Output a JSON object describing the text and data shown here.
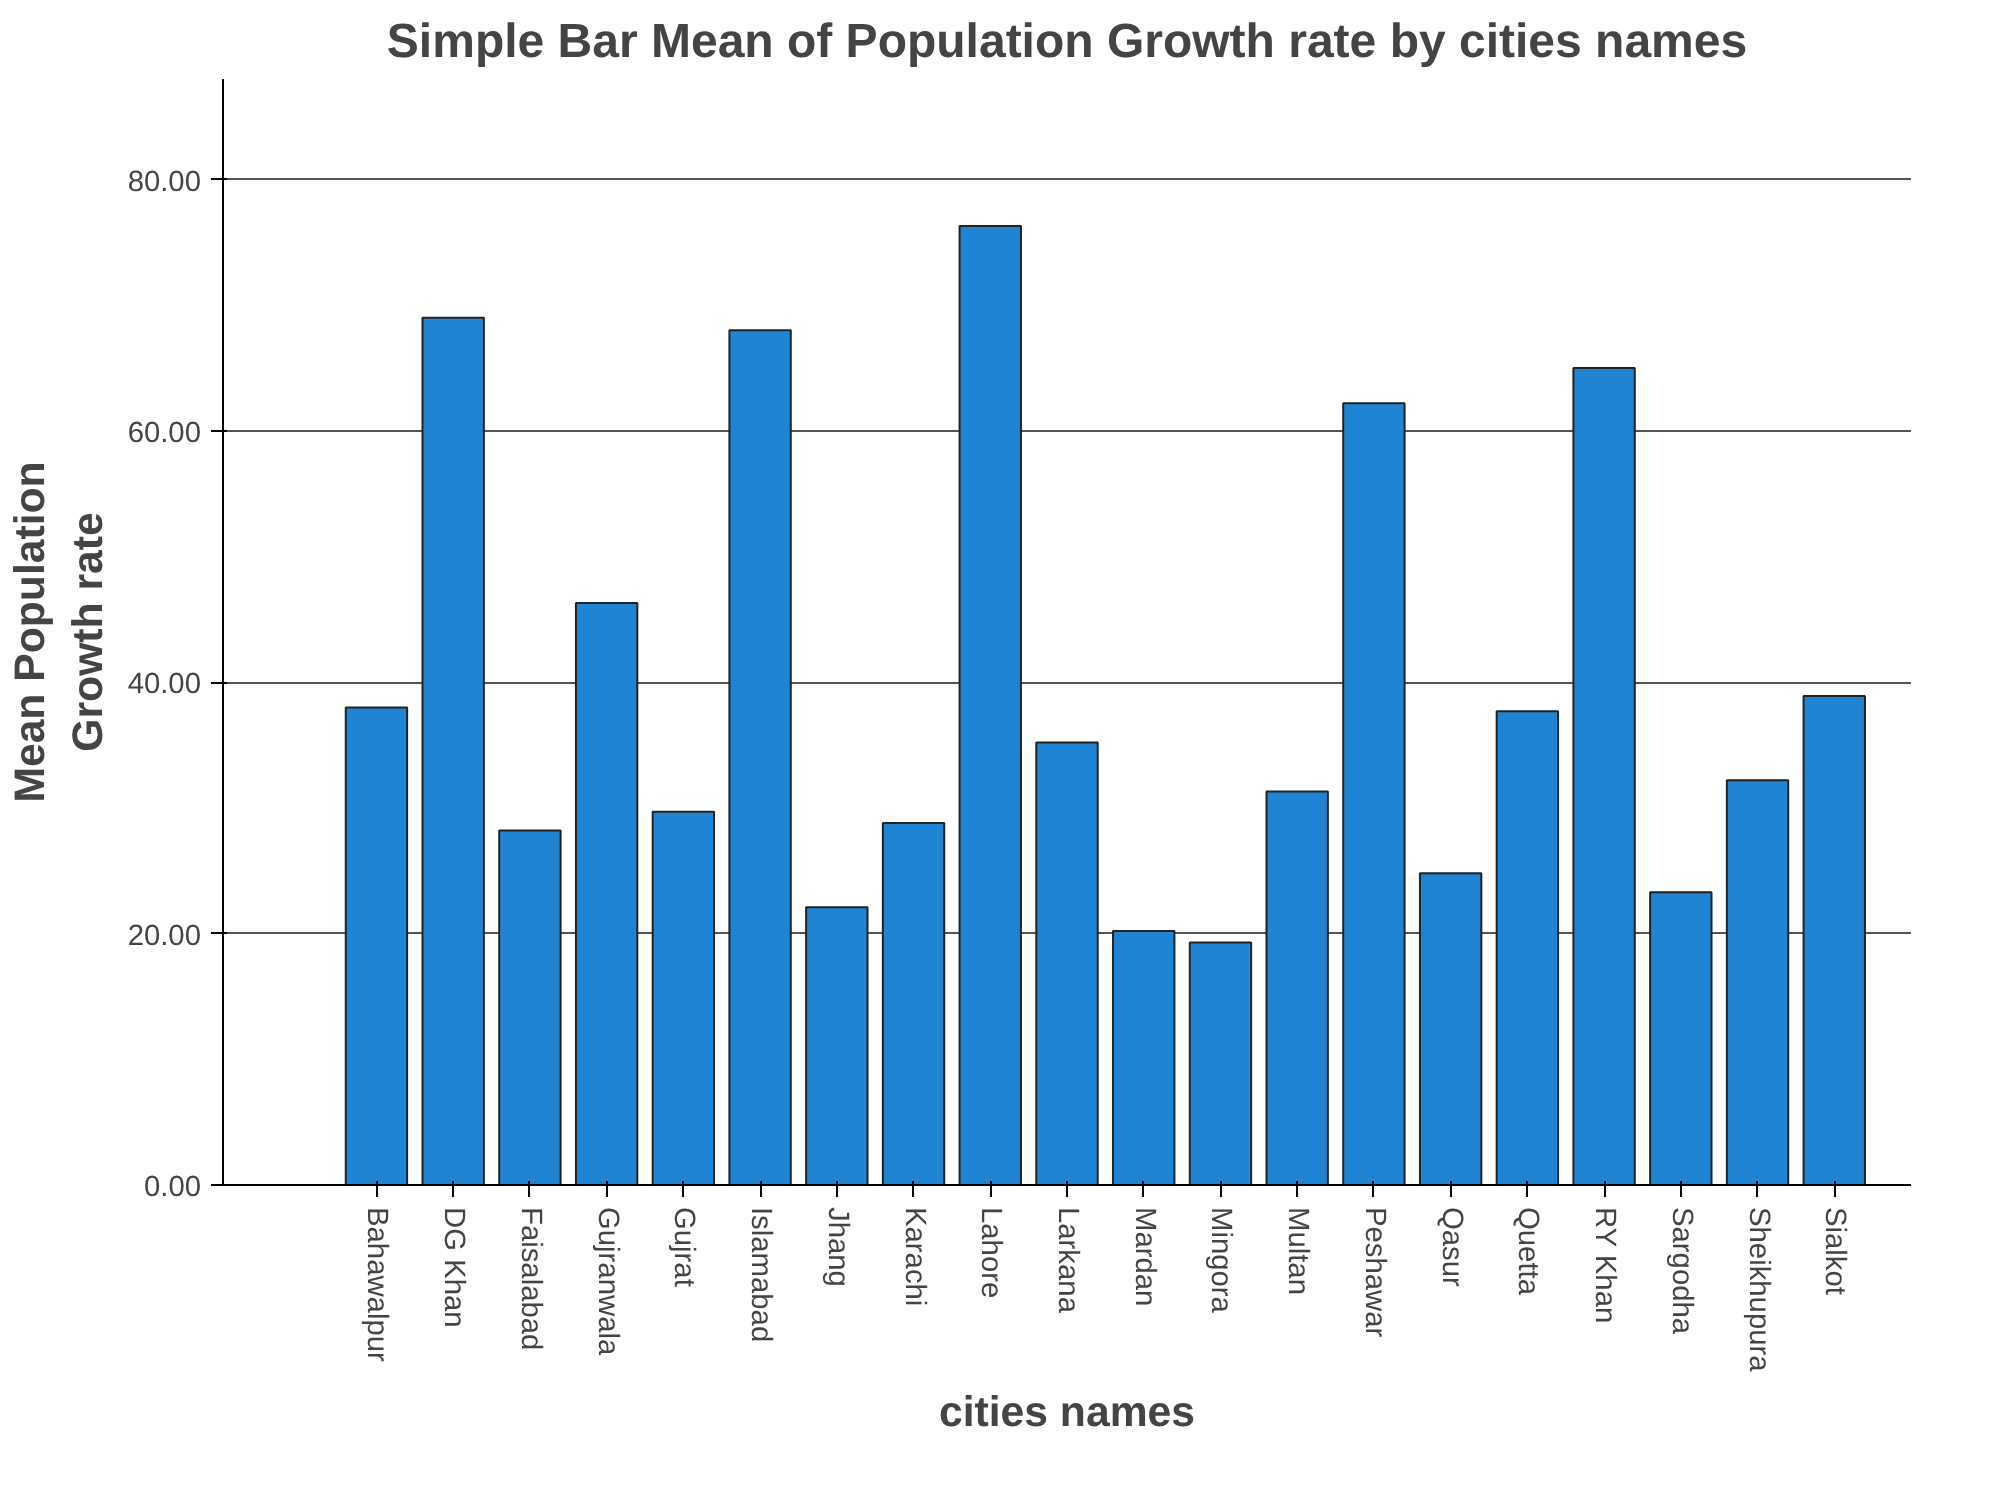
{
  "chart_data": {
    "type": "bar",
    "title": "Simple Bar Mean of Population Growth rate by cities names",
    "xlabel": "cities names",
    "ylabel": "Mean Population\nGrowth rate",
    "categories": [
      "Bahawalpur",
      "DG Khan",
      "Faisalabad",
      "Gujranwala",
      "Gujrat",
      "Islamabad",
      "Jhang",
      "Karachi",
      "Lahore",
      "Larkana",
      "Mardan",
      "Mingora",
      "Multan",
      "Peshawar",
      "Qasur",
      "Quetta",
      "RY Khan",
      "Sargodha",
      "Sheikhupura",
      "Sialkot"
    ],
    "values": [
      38.0,
      69.0,
      28.2,
      46.3,
      29.7,
      68.0,
      22.1,
      28.8,
      76.3,
      35.2,
      20.2,
      19.3,
      31.3,
      62.2,
      24.8,
      37.7,
      65.0,
      23.3,
      32.2,
      38.9
    ],
    "color": "#1f84d4",
    "ylim": [
      0,
      88
    ],
    "yticks": [
      {
        "value": 0,
        "label": "0.00"
      },
      {
        "value": 20,
        "label": "20.00"
      },
      {
        "value": 40,
        "label": "40.00"
      },
      {
        "value": 60,
        "label": "60.00"
      },
      {
        "value": 80,
        "label": "80.00"
      }
    ],
    "grid": "y"
  }
}
